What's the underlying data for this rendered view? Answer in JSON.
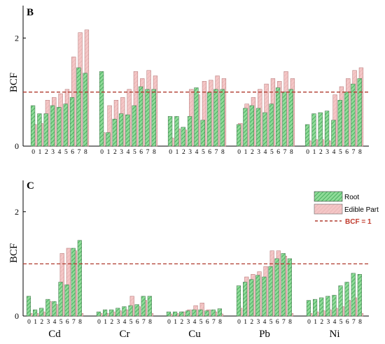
{
  "chart_data": [
    {
      "panel": "B",
      "type": "bar",
      "ylabel": "BCF",
      "ylim": [
        0,
        2.6
      ],
      "yticks": [
        0,
        2
      ],
      "reference_line": 1,
      "groups": [
        {
          "name": "",
          "categories": [
            "0",
            "1",
            "2",
            "3",
            "4",
            "5",
            "6",
            "7",
            "8"
          ],
          "root": [
            0.75,
            0.6,
            0.6,
            0.75,
            0.72,
            0.78,
            0.9,
            1.45,
            1.35
          ],
          "edible": [
            0.4,
            0.42,
            0.85,
            0.9,
            0.97,
            1.05,
            1.65,
            2.1,
            2.15
          ]
        },
        {
          "name": "",
          "categories": [
            "0",
            "1",
            "2",
            "3",
            "4",
            "5",
            "6",
            "7",
            "8"
          ],
          "root": [
            1.38,
            0.25,
            0.5,
            0.6,
            0.58,
            0.75,
            1.1,
            1.05,
            1.05
          ],
          "edible": [
            0.25,
            0.75,
            0.85,
            0.9,
            1.05,
            1.38,
            1.25,
            1.4,
            1.3
          ]
        },
        {
          "name": "",
          "categories": [
            "0",
            "1",
            "2",
            "3",
            "4",
            "5",
            "6",
            "7",
            "8"
          ],
          "root": [
            0.55,
            0.55,
            0.35,
            0.55,
            1.08,
            0.48,
            1.0,
            1.05,
            1.05
          ],
          "edible": [
            0.15,
            0.32,
            0.3,
            1.05,
            0.95,
            1.2,
            1.22,
            1.3,
            1.25
          ]
        },
        {
          "name": "",
          "categories": [
            "0",
            "1",
            "2",
            "3",
            "4",
            "5",
            "6",
            "7",
            "8"
          ],
          "root": [
            0.4,
            0.7,
            0.75,
            0.7,
            0.62,
            0.78,
            1.08,
            1.0,
            1.05
          ],
          "edible": [
            0.42,
            0.78,
            0.9,
            1.05,
            1.15,
            1.25,
            1.2,
            1.38,
            1.25
          ]
        },
        {
          "name": "",
          "categories": [
            "0",
            "1",
            "2",
            "3",
            "4",
            "5",
            "6",
            "7",
            "8"
          ],
          "root": [
            0.4,
            0.6,
            0.62,
            0.65,
            0.48,
            0.85,
            1.0,
            1.15,
            1.25
          ],
          "edible": [
            0.1,
            0.12,
            0.12,
            0.1,
            0.95,
            1.1,
            1.25,
            1.4,
            1.45
          ]
        }
      ]
    },
    {
      "panel": "C",
      "type": "bar",
      "ylabel": "BCF",
      "ylim": [
        0,
        2.6
      ],
      "yticks": [
        0,
        2
      ],
      "reference_line": 1,
      "groups": [
        {
          "name": "Cd",
          "categories": [
            "0",
            "1",
            "2",
            "3",
            "4",
            "5",
            "6",
            "7",
            "8"
          ],
          "root": [
            0.38,
            0.12,
            0.15,
            0.32,
            0.28,
            0.65,
            0.6,
            1.3,
            1.45
          ],
          "edible": [
            0.05,
            0.05,
            0.08,
            0.28,
            0.22,
            1.2,
            1.3,
            1.25,
            0.05
          ]
        },
        {
          "name": "Cr",
          "categories": [
            "0",
            "1",
            "2",
            "3",
            "4",
            "5",
            "6",
            "7",
            "8"
          ],
          "root": [
            0.08,
            0.12,
            0.12,
            0.15,
            0.18,
            0.2,
            0.22,
            0.38,
            0.38
          ],
          "edible": [
            0.05,
            0.05,
            0.08,
            0.1,
            0.12,
            0.38,
            0.18,
            0.3,
            0.05
          ]
        },
        {
          "name": "Cu",
          "categories": [
            "0",
            "1",
            "2",
            "3",
            "4",
            "5",
            "6",
            "7",
            "8"
          ],
          "root": [
            0.08,
            0.08,
            0.08,
            0.1,
            0.12,
            0.12,
            0.1,
            0.12,
            0.14
          ],
          "edible": [
            0.04,
            0.05,
            0.08,
            0.12,
            0.2,
            0.25,
            0.12,
            0.08,
            0.04
          ]
        },
        {
          "name": "Pb",
          "categories": [
            "0",
            "1",
            "2",
            "3",
            "4",
            "5",
            "6",
            "7",
            "8"
          ],
          "root": [
            0.58,
            0.65,
            0.7,
            0.78,
            0.75,
            0.95,
            1.1,
            1.2,
            1.1
          ],
          "edible": [
            0.15,
            0.75,
            0.8,
            0.85,
            0.95,
            1.25,
            1.25,
            1.15,
            0.05
          ]
        },
        {
          "name": "Ni",
          "categories": [
            "0",
            "1",
            "2",
            "3",
            "4",
            "5",
            "6",
            "7",
            "8"
          ],
          "root": [
            0.3,
            0.32,
            0.35,
            0.38,
            0.4,
            0.58,
            0.65,
            0.82,
            0.8
          ],
          "edible": [
            0.05,
            0.08,
            0.1,
            0.12,
            0.15,
            0.18,
            0.3,
            0.35,
            0.05
          ]
        }
      ],
      "legend": {
        "placement": "top-right",
        "root_label": "Root",
        "edible_label": "Edible Part",
        "ref_label": "BCF = 1"
      }
    }
  ],
  "colors": {
    "root_fill": "#8fdb98",
    "root_hatch": "#2f9e4a",
    "edible_fill": "#f4c6c6",
    "edible_stroke": "#b07070",
    "ref_line": "#b03a2e"
  }
}
